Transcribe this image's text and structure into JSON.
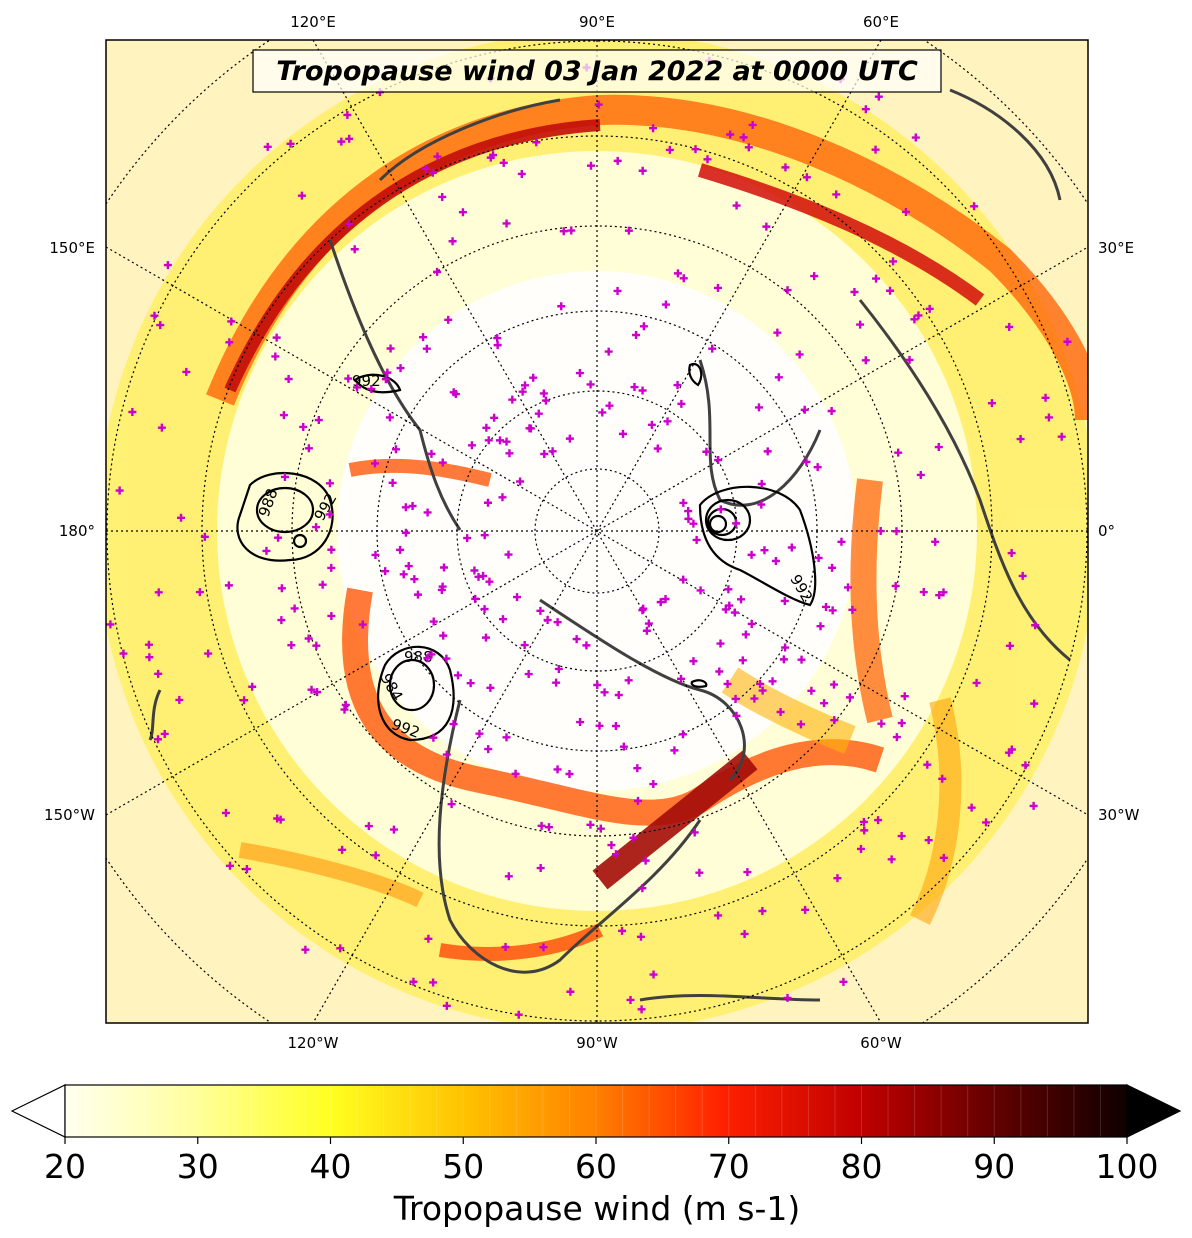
{
  "title": "Tropopause wind 03 Jan 2022 at 0000 UTC",
  "top_lon_labels": [
    "120°E",
    "90°E",
    "60°E"
  ],
  "bottom_lon_labels": [
    "120°W",
    "90°W",
    "60°W"
  ],
  "left_lon_labels": [
    "150°E",
    "180°",
    "150°W"
  ],
  "right_lon_labels": [
    "30°E",
    "0°",
    "30°W"
  ],
  "colorbar": {
    "label": "Tropopause wind (m s-1)",
    "min": 20,
    "max": 100,
    "ticks": [
      "20",
      "30",
      "40",
      "50",
      "60",
      "70",
      "80",
      "90",
      "100"
    ],
    "extend": "both"
  },
  "pressure_contour_labels": [
    "992",
    "988",
    "992",
    "988",
    "984",
    "992",
    "992"
  ],
  "colors": {
    "land_outline": "#404040",
    "station_marker": "#cc00cc",
    "contour": "#000000"
  }
}
